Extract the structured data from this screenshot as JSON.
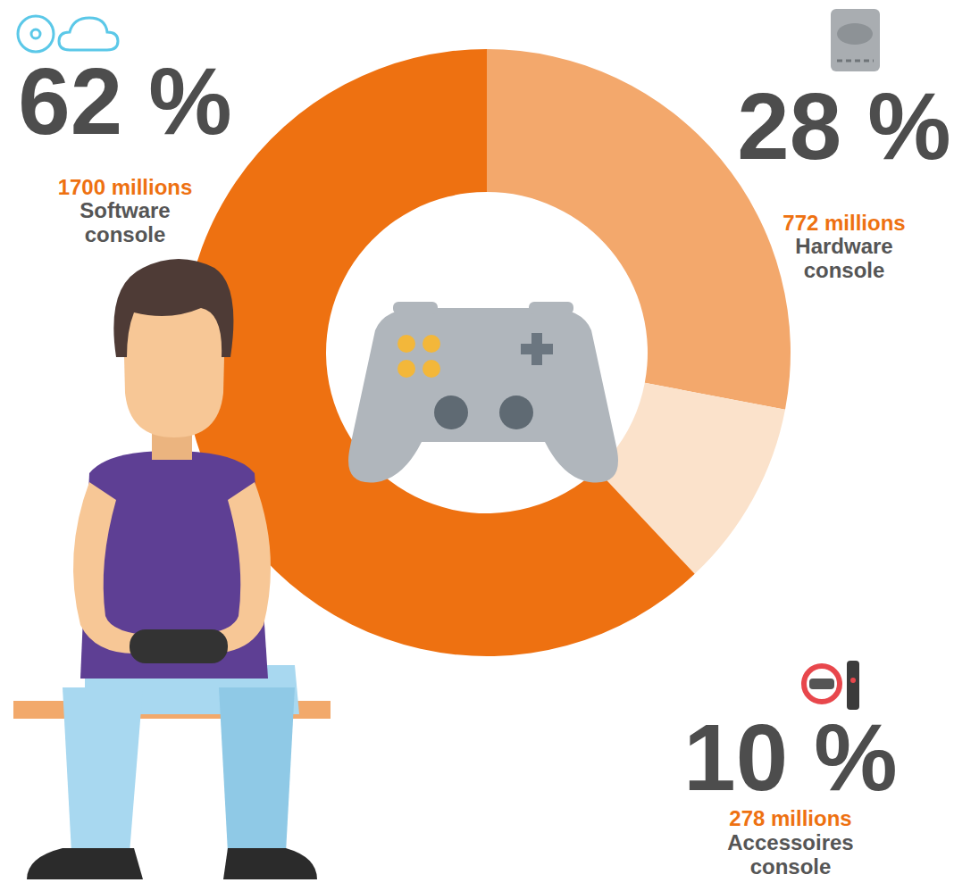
{
  "chart_data": {
    "type": "donut",
    "categories": [
      "Hardware console",
      "Accessoires console",
      "Software console"
    ],
    "values": [
      28,
      10,
      62
    ],
    "value_labels": [
      "28 %",
      "10 %",
      "62 %"
    ],
    "amount_labels": [
      "772 millions",
      "278 millions",
      "1700 millions"
    ],
    "colors": [
      "#F3A86C",
      "#FBE2CB",
      "#EE7111"
    ],
    "data_labels": true
  }
}
